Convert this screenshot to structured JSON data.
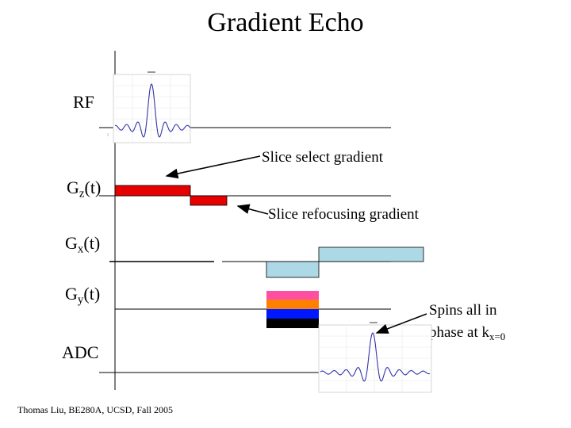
{
  "title": "Gradient Echo",
  "rows": {
    "rf": {
      "label": "RF"
    },
    "gz": {
      "label_main": "G",
      "label_sub": "z",
      "label_suffix": "(t)"
    },
    "gx": {
      "label_main": "G",
      "label_sub": "x",
      "label_suffix": "(t)"
    },
    "gy": {
      "label_main": "G",
      "label_sub": "y",
      "label_suffix": "(t)"
    },
    "adc": {
      "label": "ADC"
    }
  },
  "annotations": {
    "slice_select": "Slice select gradient",
    "slice_refocus": "Slice refocusing gradient",
    "spins_line1": "Spins all in",
    "spins_line2_main": "phase at k",
    "spins_line2_sub": "x=0"
  },
  "colors": {
    "gz_pulse": "#e60000",
    "gx_pulse": "#add8e6",
    "gy_steps": [
      "#ff4fa0",
      "#ff7f00",
      "#0018ff",
      "#000000"
    ],
    "waveform": "#3333aa"
  },
  "footer": "Thomas Liu, BE280A, UCSD, Fall 2005"
}
